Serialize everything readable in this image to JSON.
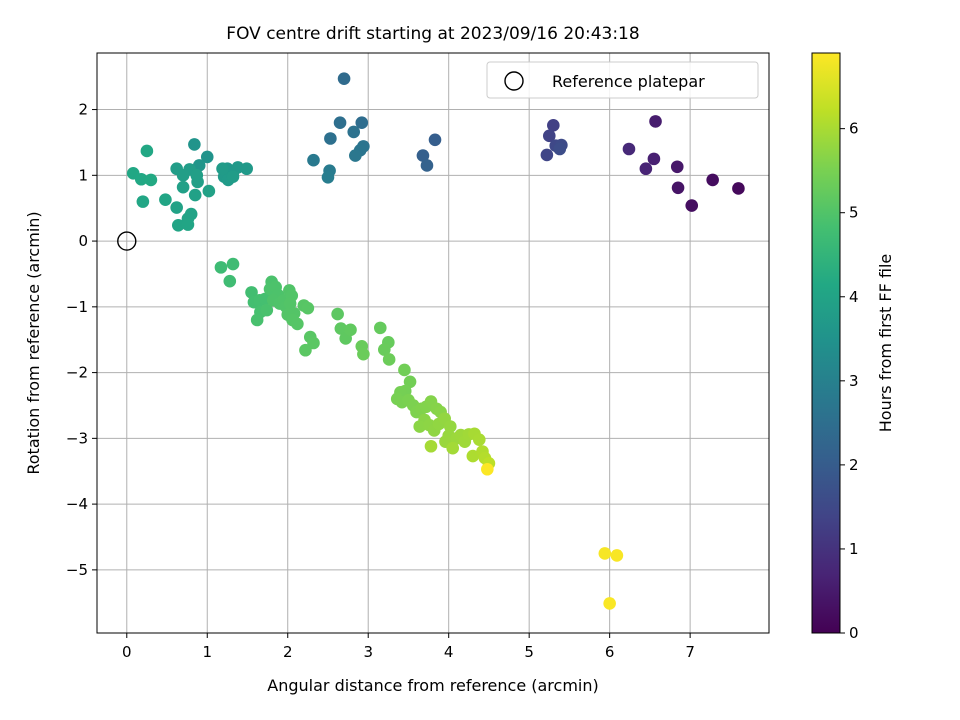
{
  "chart_data": {
    "type": "scatter",
    "title": "FOV centre drift starting at 2023/09/16 20:43:18",
    "xlabel": "Angular distance from reference (arcmin)",
    "ylabel": "Rotation from reference (arcmin)",
    "xlim": [
      -0.37,
      7.98
    ],
    "ylim": [
      -5.96,
      2.86
    ],
    "xticks": [
      "0",
      "1",
      "2",
      "3",
      "4",
      "5",
      "6",
      "7"
    ],
    "yticks": [
      "2",
      "1",
      "0",
      "−1",
      "−2",
      "−3",
      "−4",
      "−5"
    ],
    "grid": true,
    "legend": {
      "position": "top-right",
      "entries": [
        "Reference platepar"
      ]
    },
    "reference_point": {
      "x": 0,
      "y": 0
    },
    "colorbar": {
      "label": "Hours from first FF file",
      "colormap": "viridis",
      "range": [
        0,
        6.9
      ],
      "ticks": [
        "0",
        "1",
        "2",
        "3",
        "4",
        "5",
        "6"
      ]
    },
    "series": [
      {
        "points": [
          [
            7.6,
            0.8,
            0.15
          ],
          [
            7.28,
            0.93,
            0.22
          ],
          [
            7.02,
            0.54,
            0.25
          ],
          [
            6.85,
            0.81,
            0.38
          ],
          [
            6.84,
            1.13,
            0.45
          ],
          [
            6.57,
            1.82,
            0.55
          ],
          [
            6.55,
            1.25,
            0.62
          ],
          [
            6.45,
            1.1,
            0.7
          ],
          [
            6.24,
            1.4,
            0.8
          ],
          [
            5.3,
            1.76,
            1.3
          ],
          [
            5.25,
            1.6,
            1.36
          ],
          [
            5.22,
            1.31,
            1.42
          ],
          [
            5.33,
            1.45,
            1.48
          ],
          [
            5.4,
            1.46,
            1.55
          ],
          [
            5.38,
            1.4,
            1.6
          ],
          [
            3.83,
            1.54,
            2.05
          ],
          [
            3.68,
            1.3,
            2.1
          ],
          [
            3.73,
            1.15,
            2.15
          ],
          [
            2.7,
            2.47,
            2.4
          ],
          [
            2.92,
            1.8,
            2.45
          ],
          [
            2.65,
            1.8,
            2.5
          ],
          [
            2.53,
            1.56,
            2.55
          ],
          [
            2.82,
            1.66,
            2.6
          ],
          [
            2.94,
            1.44,
            2.65
          ],
          [
            2.9,
            1.38,
            2.68
          ],
          [
            2.84,
            1.3,
            2.72
          ],
          [
            2.32,
            1.23,
            2.8
          ],
          [
            2.52,
            1.07,
            2.85
          ],
          [
            2.5,
            0.97,
            2.9
          ],
          [
            1.0,
            1.28,
            3.5
          ],
          [
            0.84,
            1.47,
            3.55
          ],
          [
            0.9,
            1.15,
            3.58
          ],
          [
            1.25,
            1.1,
            3.62
          ],
          [
            1.32,
            1.05,
            3.65
          ],
          [
            1.38,
            1.12,
            3.68
          ],
          [
            1.49,
            1.1,
            3.7
          ],
          [
            1.21,
            0.98,
            3.72
          ],
          [
            1.26,
            0.93,
            3.74
          ],
          [
            1.19,
            1.1,
            3.76
          ],
          [
            1.32,
            0.98,
            3.78
          ],
          [
            0.62,
            1.1,
            3.8
          ],
          [
            0.78,
            1.09,
            3.82
          ],
          [
            0.7,
            1.0,
            3.84
          ],
          [
            0.87,
            1.0,
            3.86
          ],
          [
            0.88,
            0.9,
            3.88
          ],
          [
            0.7,
            0.82,
            3.9
          ],
          [
            0.85,
            0.7,
            3.92
          ],
          [
            1.02,
            0.76,
            3.94
          ],
          [
            0.62,
            0.51,
            3.96
          ],
          [
            0.8,
            0.41,
            3.98
          ],
          [
            0.76,
            0.34,
            4.0
          ],
          [
            0.64,
            0.24,
            4.02
          ],
          [
            0.76,
            0.25,
            4.04
          ],
          [
            0.48,
            0.63,
            4.06
          ],
          [
            0.2,
            0.6,
            4.08
          ],
          [
            0.25,
            1.37,
            4.1
          ],
          [
            0.08,
            1.03,
            4.12
          ],
          [
            0.18,
            0.94,
            4.14
          ],
          [
            0.3,
            0.93,
            4.16
          ],
          [
            1.17,
            -0.4,
            4.7
          ],
          [
            1.32,
            -0.35,
            4.72
          ],
          [
            1.28,
            -0.61,
            4.74
          ],
          [
            1.55,
            -0.78,
            4.78
          ],
          [
            1.58,
            -0.93,
            4.8
          ],
          [
            1.65,
            -0.9,
            4.82
          ],
          [
            1.72,
            -0.88,
            4.84
          ],
          [
            1.66,
            -1.08,
            4.86
          ],
          [
            1.62,
            -1.2,
            4.88
          ],
          [
            1.74,
            -1.05,
            4.9
          ],
          [
            1.8,
            -0.62,
            4.92
          ],
          [
            1.78,
            -0.73,
            4.93
          ],
          [
            1.85,
            -0.7,
            4.94
          ],
          [
            1.88,
            -0.82,
            4.95
          ],
          [
            1.82,
            -0.9,
            4.96
          ],
          [
            1.9,
            -0.95,
            4.97
          ],
          [
            1.95,
            -0.9,
            4.98
          ],
          [
            1.98,
            -1.0,
            4.99
          ],
          [
            2.02,
            -0.75,
            5.0
          ],
          [
            2.05,
            -0.83,
            5.01
          ],
          [
            2.03,
            -0.95,
            5.02
          ],
          [
            2.08,
            -1.1,
            5.03
          ],
          [
            2.0,
            -1.12,
            5.04
          ],
          [
            2.06,
            -1.2,
            5.05
          ],
          [
            2.12,
            -1.26,
            5.06
          ],
          [
            2.2,
            -0.98,
            5.07
          ],
          [
            2.25,
            -1.02,
            5.08
          ],
          [
            2.28,
            -1.46,
            5.1
          ],
          [
            2.32,
            -1.55,
            5.12
          ],
          [
            2.22,
            -1.66,
            5.13
          ],
          [
            2.62,
            -1.11,
            5.15
          ],
          [
            2.66,
            -1.33,
            5.17
          ],
          [
            2.72,
            -1.48,
            5.18
          ],
          [
            2.78,
            -1.35,
            5.2
          ],
          [
            3.15,
            -1.32,
            5.25
          ],
          [
            3.25,
            -1.54,
            5.28
          ],
          [
            3.2,
            -1.65,
            5.3
          ],
          [
            2.92,
            -1.6,
            5.3
          ],
          [
            2.94,
            -1.72,
            5.32
          ],
          [
            3.26,
            -1.8,
            5.34
          ],
          [
            3.45,
            -1.96,
            5.4
          ],
          [
            3.52,
            -2.14,
            5.42
          ],
          [
            3.46,
            -2.28,
            5.44
          ],
          [
            3.4,
            -2.3,
            5.46
          ],
          [
            3.36,
            -2.4,
            5.48
          ],
          [
            3.42,
            -2.45,
            5.5
          ],
          [
            3.5,
            -2.42,
            5.52
          ],
          [
            3.56,
            -2.5,
            5.54
          ],
          [
            3.6,
            -2.6,
            5.56
          ],
          [
            3.66,
            -2.55,
            5.58
          ],
          [
            3.72,
            -2.52,
            5.6
          ],
          [
            3.78,
            -2.44,
            5.62
          ],
          [
            3.85,
            -2.55,
            5.64
          ],
          [
            3.9,
            -2.6,
            5.66
          ],
          [
            3.7,
            -2.72,
            5.68
          ],
          [
            3.64,
            -2.82,
            5.7
          ],
          [
            3.76,
            -2.8,
            5.72
          ],
          [
            3.82,
            -2.88,
            5.74
          ],
          [
            3.88,
            -2.78,
            5.76
          ],
          [
            3.95,
            -2.7,
            5.78
          ],
          [
            4.02,
            -2.82,
            5.8
          ],
          [
            4.0,
            -2.96,
            5.82
          ],
          [
            3.96,
            -3.05,
            5.84
          ],
          [
            4.1,
            -3.0,
            5.86
          ],
          [
            4.15,
            -2.95,
            5.88
          ],
          [
            4.2,
            -3.05,
            5.9
          ],
          [
            4.25,
            -2.94,
            5.92
          ],
          [
            4.05,
            -3.15,
            5.94
          ],
          [
            3.78,
            -3.12,
            5.96
          ],
          [
            4.32,
            -2.93,
            5.98
          ],
          [
            4.38,
            -3.02,
            6.0
          ],
          [
            4.3,
            -3.27,
            6.05
          ],
          [
            4.42,
            -3.2,
            6.08
          ],
          [
            4.45,
            -3.3,
            6.12
          ],
          [
            4.5,
            -3.38,
            6.2
          ],
          [
            4.48,
            -3.47,
            6.88
          ],
          [
            5.94,
            -4.75,
            6.82
          ],
          [
            6.09,
            -4.78,
            6.85
          ],
          [
            6.0,
            -5.51,
            6.86
          ]
        ]
      }
    ]
  }
}
